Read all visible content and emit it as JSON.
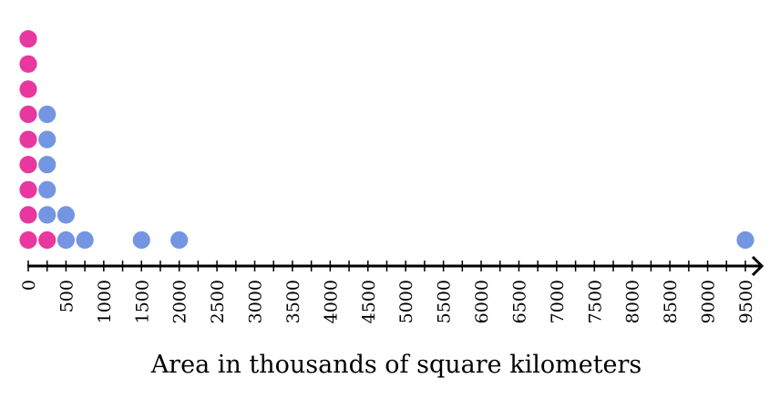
{
  "chart_data": {
    "type": "dot",
    "xlabel": "Area in thousands of square kilometers",
    "ylabel": "",
    "title": "",
    "xlim": [
      0,
      9500
    ],
    "tick_step": 250,
    "tick_labels": [
      "0",
      "500",
      "1000",
      "1500",
      "2000",
      "2500",
      "3000",
      "3500",
      "4000",
      "4500",
      "5000",
      "5500",
      "6000",
      "6500",
      "7000",
      "7500",
      "8000",
      "8500",
      "9000",
      "9500"
    ],
    "series": [
      {
        "color": "#e8379f",
        "points": [
          {
            "x": 0,
            "count": 9
          },
          {
            "x": 250,
            "count": 1
          }
        ]
      },
      {
        "color": "#7395e2",
        "points": [
          {
            "x": 250,
            "count": 5
          },
          {
            "x": 500,
            "count": 2
          },
          {
            "x": 750,
            "count": 1
          },
          {
            "x": 1500,
            "count": 1
          },
          {
            "x": 2000,
            "count": 1
          },
          {
            "x": 9500,
            "count": 1
          }
        ]
      }
    ]
  }
}
